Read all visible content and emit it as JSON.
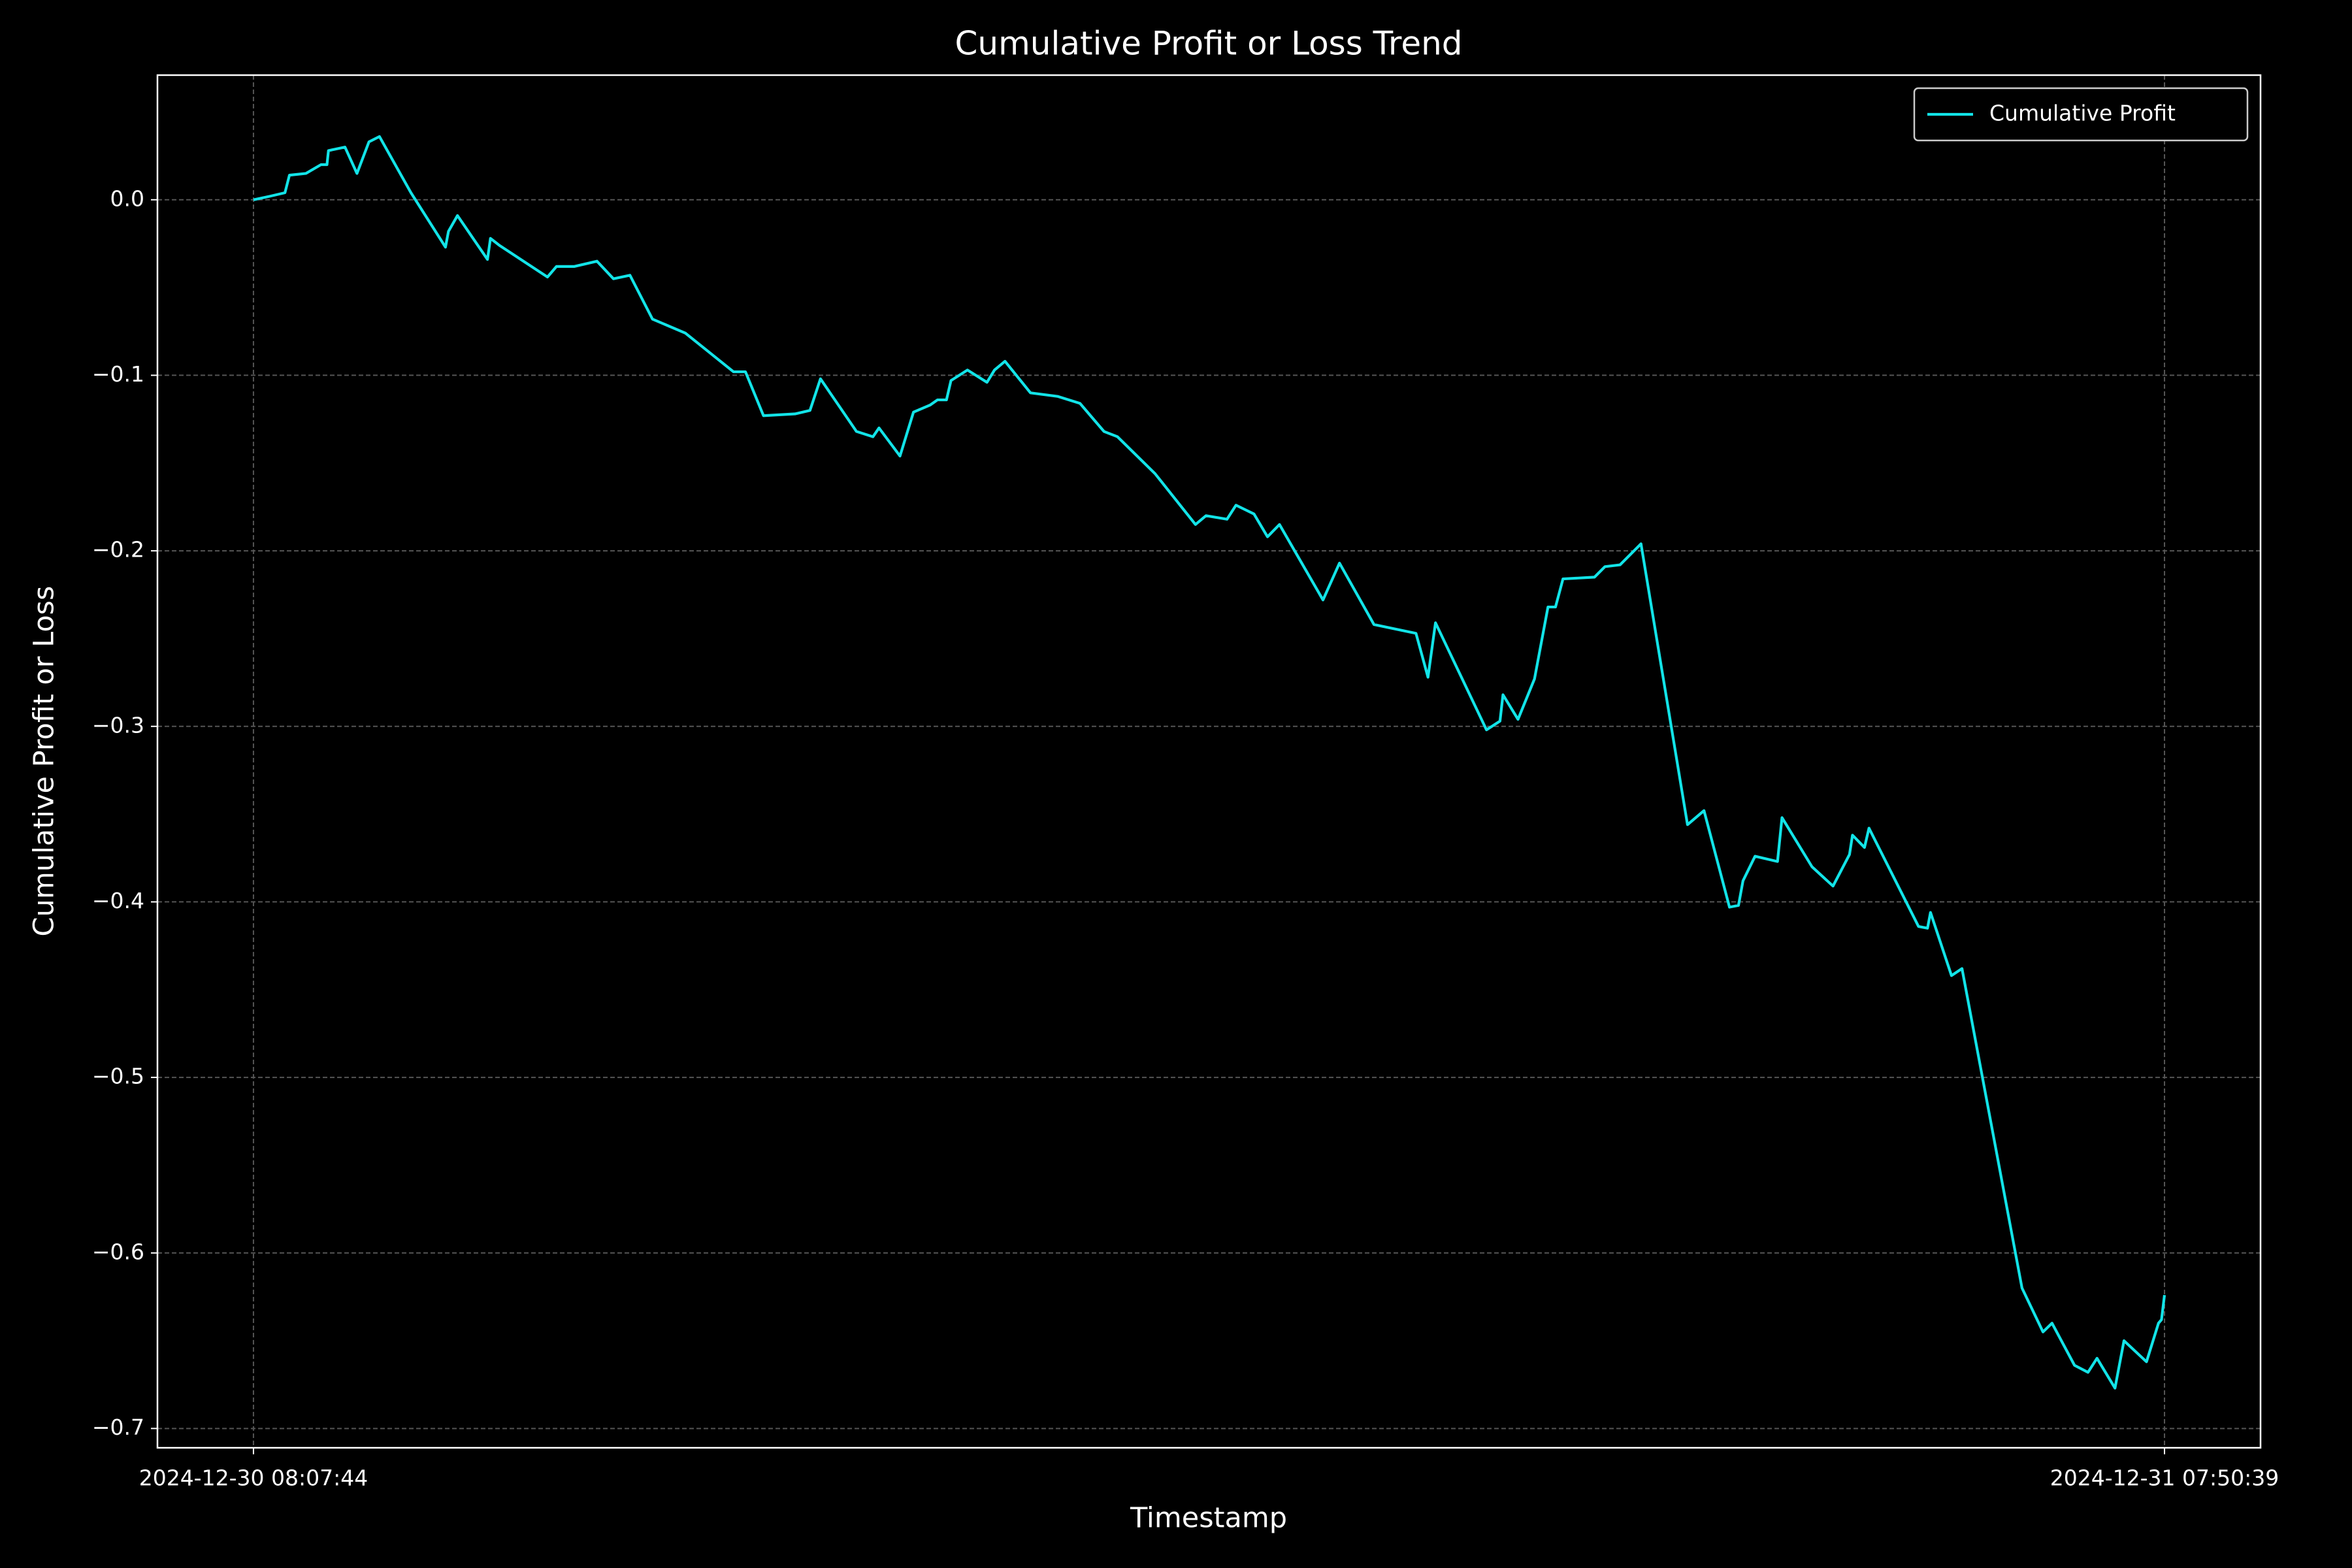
{
  "chart_data": {
    "type": "line",
    "title": "Cumulative Profit or Loss Trend",
    "x_label": "Timestamp",
    "y_label": "Cumulative Profit or Loss",
    "x": [
      "2024-12-30 08:07:44",
      "2024-12-30 08:20:01",
      "2024-12-30 08:31:11",
      "2024-12-30 08:34:32",
      "2024-12-30 08:46:49",
      "2024-12-30 08:58:00",
      "2024-12-30 09:02:28",
      "2024-12-30 09:03:35",
      "2024-12-30 09:15:52",
      "2024-12-30 09:24:48",
      "2024-12-30 09:33:44",
      "2024-12-30 09:41:33",
      "2024-12-30 10:05:00",
      "2024-12-30 10:30:42",
      "2024-12-30 10:32:56",
      "2024-12-30 10:39:38",
      "2024-12-30 11:01:58",
      "2024-12-30 11:04:12",
      "2024-12-30 11:10:54",
      "2024-12-30 11:46:39",
      "2024-12-30 11:53:21",
      "2024-12-30 12:06:45",
      "2024-12-30 12:23:30",
      "2024-12-30 12:35:47",
      "2024-12-30 12:48:04",
      "2024-12-30 13:04:50",
      "2024-12-30 13:29:24",
      "2024-12-30 14:05:08",
      "2024-12-30 14:14:04",
      "2024-12-30 14:27:29",
      "2024-12-30 14:50:56",
      "2024-12-30 15:02:06",
      "2024-12-30 15:09:55",
      "2024-12-30 15:36:43",
      "2024-12-30 15:49:01",
      "2024-12-30 15:53:29",
      "2024-12-30 16:09:07",
      "2024-12-30 16:19:10",
      "2024-12-30 16:31:27",
      "2024-12-30 16:37:02",
      "2024-12-30 16:43:44",
      "2024-12-30 16:47:05",
      "2024-12-30 16:59:22",
      "2024-12-30 17:13:54",
      "2024-12-30 17:19:29",
      "2024-12-30 17:27:18",
      "2024-12-30 17:46:17",
      "2024-12-30 18:06:23",
      "2024-12-30 18:23:08",
      "2024-12-30 18:41:01",
      "2024-12-30 18:51:04",
      "2024-12-30 19:18:59",
      "2024-12-30 19:49:08",
      "2024-12-30 19:56:57",
      "2024-12-30 20:12:36",
      "2024-12-30 20:19:18",
      "2024-12-30 20:32:42",
      "2024-12-30 20:42:45",
      "2024-12-30 20:51:41",
      "2024-12-30 21:24:05",
      "2024-12-30 21:36:22",
      "2024-12-30 22:02:03",
      "2024-12-30 22:33:19",
      "2024-12-30 22:42:15",
      "2024-12-30 22:47:51",
      "2024-12-30 23:25:49",
      "2024-12-30 23:35:52",
      "2024-12-30 23:38:06",
      "2024-12-30 23:49:16",
      "2024-12-31 00:01:33",
      "2024-12-31 00:11:37",
      "2024-12-31 00:17:12",
      "2024-12-31 00:22:47",
      "2024-12-31 00:46:14",
      "2024-12-31 00:54:03",
      "2024-12-31 01:05:13",
      "2024-12-31 01:20:51",
      "2024-12-31 01:55:29",
      "2024-12-31 02:07:46",
      "2024-12-31 02:26:45",
      "2024-12-31 02:33:27",
      "2024-12-31 02:36:48",
      "2024-12-31 02:45:47",
      "2024-12-31 03:02:30",
      "2024-12-31 03:05:51",
      "2024-12-31 03:28:11",
      "2024-12-31 03:43:49",
      "2024-12-31 03:56:06",
      "2024-12-31 03:58:20",
      "2024-12-31 04:07:16",
      "2024-12-31 04:10:37",
      "2024-12-31 04:47:29",
      "2024-12-31 04:54:11",
      "2024-12-31 04:56:25",
      "2024-12-31 05:12:03",
      "2024-12-31 05:19:52",
      "2024-12-31 06:04:33",
      "2024-12-31 06:20:11",
      "2024-12-31 06:26:53",
      "2024-12-31 06:43:38",
      "2024-12-31 06:53:41",
      "2024-12-31 07:00:23",
      "2024-12-31 07:13:47",
      "2024-12-31 07:20:29",
      "2024-12-31 07:37:15",
      "2024-12-31 07:46:11",
      "2024-12-31 07:48:25",
      "2024-12-31 07:50:39"
    ],
    "series": [
      {
        "name": "Cumulative Profit",
        "color": "#12e4e8",
        "values": [
          0,
          0.002,
          0.004,
          0.014,
          0.015,
          0.02,
          0.02,
          0.028,
          0.03,
          0.015,
          0.033,
          0.036,
          0.004,
          -0.027,
          -0.018,
          -0.009,
          -0.034,
          -0.022,
          -0.026,
          -0.044,
          -0.038,
          -0.038,
          -0.035,
          -0.045,
          -0.043,
          -0.068,
          -0.076,
          -0.098,
          -0.098,
          -0.123,
          -0.122,
          -0.12,
          -0.102,
          -0.132,
          -0.135,
          -0.13,
          -0.146,
          -0.121,
          -0.117,
          -0.114,
          -0.114,
          -0.103,
          -0.097,
          -0.104,
          -0.097,
          -0.092,
          -0.11,
          -0.112,
          -0.116,
          -0.132,
          -0.135,
          -0.156,
          -0.185,
          -0.18,
          -0.182,
          -0.174,
          -0.179,
          -0.192,
          -0.185,
          -0.228,
          -0.207,
          -0.242,
          -0.247,
          -0.272,
          -0.241,
          -0.302,
          -0.297,
          -0.282,
          -0.296,
          -0.273,
          -0.232,
          -0.232,
          -0.216,
          -0.215,
          -0.209,
          -0.208,
          -0.196,
          -0.356,
          -0.348,
          -0.403,
          -0.402,
          -0.388,
          -0.374,
          -0.377,
          -0.352,
          -0.38,
          -0.391,
          -0.373,
          -0.362,
          -0.369,
          -0.358,
          -0.414,
          -0.415,
          -0.406,
          -0.442,
          -0.438,
          -0.62,
          -0.645,
          -0.64,
          -0.664,
          -0.668,
          -0.66,
          -0.677,
          -0.65,
          -0.662,
          -0.64,
          -0.638,
          -0.624
        ]
      }
    ],
    "xlim": [
      "2024-12-30 06:56:15",
      "2024-12-31 09:02:09"
    ],
    "xticks": [
      "2024-12-30 08:07:44",
      "2024-12-31 07:50:39"
    ],
    "ylim": [
      -0.711,
      0.071
    ],
    "yticks": [
      {
        "value": 0.0,
        "label": "0.0"
      },
      {
        "value": -0.1,
        "label": "−0.1"
      },
      {
        "value": -0.2,
        "label": "−0.2"
      },
      {
        "value": -0.3,
        "label": "−0.3"
      },
      {
        "value": -0.4,
        "label": "−0.4"
      },
      {
        "value": -0.5,
        "label": "−0.5"
      },
      {
        "value": -0.6,
        "label": "−0.6"
      },
      {
        "value": -0.7,
        "label": "−0.7"
      }
    ],
    "grid": true,
    "legend_position": "upper right"
  }
}
